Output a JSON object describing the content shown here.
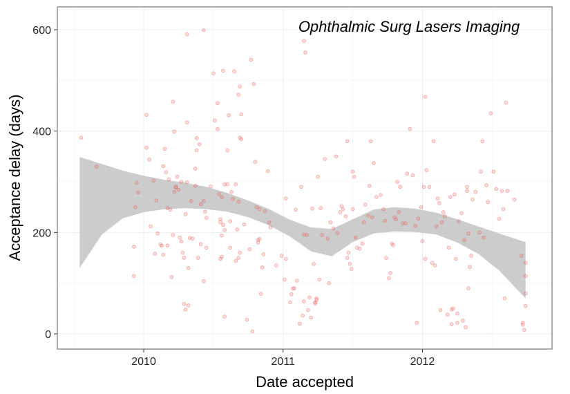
{
  "chart_data": {
    "type": "scatter",
    "title": "",
    "annotation": "Ophthalmic Surg Lasers Imaging",
    "xlabel": "Date accepted",
    "ylabel": "Acceptance delay (days)",
    "x_unit": "year",
    "xlim": [
      2009.38,
      2012.93
    ],
    "ylim": [
      -30,
      645
    ],
    "x_ticks": [
      2010,
      2011,
      2012
    ],
    "x_tick_labels": [
      "2010",
      "2011",
      "2012"
    ],
    "y_ticks": [
      0,
      200,
      400,
      600
    ],
    "y_tick_labels": [
      "0",
      "200",
      "400",
      "600"
    ],
    "grid": true,
    "legend": "none",
    "point_color": "#e8595a",
    "band_color": "#cccccc",
    "smooth": {
      "x": [
        2009.54,
        2009.7,
        2009.85,
        2010.0,
        2010.15,
        2010.3,
        2010.45,
        2010.6,
        2010.75,
        2010.9,
        2011.05,
        2011.2,
        2011.35,
        2011.5,
        2011.65,
        2011.8,
        2011.95,
        2012.1,
        2012.25,
        2012.4,
        2012.55,
        2012.74
      ],
      "upper": [
        349,
        335,
        322,
        312,
        304,
        298,
        290,
        278,
        263,
        246,
        225,
        210,
        207,
        226,
        245,
        250,
        247,
        239,
        226,
        212,
        198,
        181
      ],
      "lower": [
        130,
        196,
        228,
        240,
        246,
        248,
        246,
        241,
        230,
        214,
        192,
        163,
        153,
        181,
        198,
        202,
        201,
        196,
        180,
        158,
        125,
        70
      ]
    },
    "points": [
      [
        2009.55,
        387
      ],
      [
        2009.66,
        330
      ],
      [
        2009.93,
        172
      ],
      [
        2009.93,
        114
      ],
      [
        2009.94,
        250
      ],
      [
        2009.95,
        298
      ],
      [
        2009.96,
        279
      ],
      [
        2010.02,
        367
      ],
      [
        2010.02,
        432
      ],
      [
        2010.04,
        344
      ],
      [
        2010.05,
        212
      ],
      [
        2010.07,
        302
      ],
      [
        2010.08,
        158
      ],
      [
        2010.09,
        263
      ],
      [
        2010.1,
        198
      ],
      [
        2010.12,
        176
      ],
      [
        2010.13,
        174
      ],
      [
        2010.14,
        156
      ],
      [
        2010.14,
        331
      ],
      [
        2010.15,
        365
      ],
      [
        2010.16,
        319
      ],
      [
        2010.17,
        248
      ],
      [
        2010.17,
        174
      ],
      [
        2010.18,
        305
      ],
      [
        2010.19,
        245
      ],
      [
        2010.2,
        112
      ],
      [
        2010.21,
        195
      ],
      [
        2010.21,
        458
      ],
      [
        2010.22,
        280
      ],
      [
        2010.22,
        399
      ],
      [
        2010.23,
        289
      ],
      [
        2010.23,
        290
      ],
      [
        2010.24,
        310
      ],
      [
        2010.25,
        284
      ],
      [
        2010.26,
        190
      ],
      [
        2010.27,
        300
      ],
      [
        2010.27,
        182
      ],
      [
        2010.28,
        160
      ],
      [
        2010.29,
        59
      ],
      [
        2010.29,
        150
      ],
      [
        2010.3,
        48
      ],
      [
        2010.3,
        236
      ],
      [
        2010.31,
        417
      ],
      [
        2010.31,
        299
      ],
      [
        2010.31,
        591
      ],
      [
        2010.32,
        56
      ],
      [
        2010.32,
        130
      ],
      [
        2010.33,
        189
      ],
      [
        2010.34,
        262
      ],
      [
        2010.35,
        188
      ],
      [
        2010.37,
        326
      ],
      [
        2010.37,
        292
      ],
      [
        2010.38,
        362
      ],
      [
        2010.38,
        386
      ],
      [
        2010.39,
        150
      ],
      [
        2010.4,
        374
      ],
      [
        2010.41,
        256
      ],
      [
        2010.41,
        177
      ],
      [
        2010.43,
        104
      ],
      [
        2010.43,
        599
      ],
      [
        2010.43,
        262
      ],
      [
        2010.44,
        241
      ],
      [
        2010.45,
        229
      ],
      [
        2010.45,
        170
      ],
      [
        2010.48,
        291
      ],
      [
        2010.5,
        514
      ],
      [
        2010.51,
        421
      ],
      [
        2010.53,
        404
      ],
      [
        2010.53,
        455
      ],
      [
        2010.54,
        276
      ],
      [
        2010.55,
        220
      ],
      [
        2010.55,
        226
      ],
      [
        2010.55,
        148
      ],
      [
        2010.56,
        194
      ],
      [
        2010.56,
        270
      ],
      [
        2010.56,
        152
      ],
      [
        2010.57,
        215
      ],
      [
        2010.57,
        519
      ],
      [
        2010.58,
        295
      ],
      [
        2010.58,
        34
      ],
      [
        2010.58,
        205
      ],
      [
        2010.6,
        295
      ],
      [
        2010.6,
        362
      ],
      [
        2010.61,
        431
      ],
      [
        2010.62,
        222
      ],
      [
        2010.62,
        170
      ],
      [
        2010.63,
        280
      ],
      [
        2010.64,
        266
      ],
      [
        2010.65,
        518
      ],
      [
        2010.66,
        295
      ],
      [
        2010.66,
        144
      ],
      [
        2010.67,
        206
      ],
      [
        2010.68,
        261
      ],
      [
        2010.68,
        472
      ],
      [
        2010.68,
        150
      ],
      [
        2010.69,
        387
      ],
      [
        2010.69,
        488
      ],
      [
        2010.69,
        160
      ],
      [
        2010.7,
        433
      ],
      [
        2010.7,
        384
      ],
      [
        2010.72,
        216
      ],
      [
        2010.74,
        28
      ],
      [
        2010.76,
        167
      ],
      [
        2010.77,
        541
      ],
      [
        2010.78,
        5
      ],
      [
        2010.79,
        493
      ],
      [
        2010.8,
        339
      ],
      [
        2010.81,
        250
      ],
      [
        2010.82,
        185
      ],
      [
        2010.82,
        180
      ],
      [
        2010.83,
        246
      ],
      [
        2010.83,
        187
      ],
      [
        2010.84,
        79
      ],
      [
        2010.85,
        131
      ],
      [
        2010.86,
        157
      ],
      [
        2010.87,
        242
      ],
      [
        2010.89,
        321
      ],
      [
        2010.9,
        220
      ],
      [
        2010.91,
        210
      ],
      [
        2010.95,
        135
      ],
      [
        2010.99,
        154
      ],
      [
        2011.01,
        107
      ],
      [
        2011.02,
        148
      ],
      [
        2011.02,
        267
      ],
      [
        2011.05,
        62
      ],
      [
        2011.06,
        78
      ],
      [
        2011.07,
        89
      ],
      [
        2011.08,
        90
      ],
      [
        2011.09,
        245
      ],
      [
        2011.1,
        105
      ],
      [
        2011.12,
        20
      ],
      [
        2011.13,
        290
      ],
      [
        2011.14,
        36
      ],
      [
        2011.15,
        64
      ],
      [
        2011.15,
        578
      ],
      [
        2011.15,
        196
      ],
      [
        2011.16,
        555
      ],
      [
        2011.17,
        195
      ],
      [
        2011.18,
        47
      ],
      [
        2011.19,
        72
      ],
      [
        2011.2,
        32
      ],
      [
        2011.21,
        247
      ],
      [
        2011.22,
        138
      ],
      [
        2011.23,
        60
      ],
      [
        2011.23,
        62
      ],
      [
        2011.24,
        70
      ],
      [
        2011.24,
        67
      ],
      [
        2011.25,
        310
      ],
      [
        2011.26,
        107
      ],
      [
        2011.27,
        248
      ],
      [
        2011.28,
        195
      ],
      [
        2011.3,
        345
      ],
      [
        2011.32,
        188
      ],
      [
        2011.33,
        100
      ],
      [
        2011.34,
        220
      ],
      [
        2011.36,
        208
      ],
      [
        2011.38,
        350
      ],
      [
        2011.39,
        199
      ],
      [
        2011.41,
        240
      ],
      [
        2011.42,
        252
      ],
      [
        2011.43,
        246
      ],
      [
        2011.45,
        232
      ],
      [
        2011.46,
        150
      ],
      [
        2011.46,
        380
      ],
      [
        2011.47,
        160
      ],
      [
        2011.48,
        138
      ],
      [
        2011.49,
        128
      ],
      [
        2011.5,
        246
      ],
      [
        2011.5,
        320
      ],
      [
        2011.51,
        310
      ],
      [
        2011.52,
        190
      ],
      [
        2011.53,
        170
      ],
      [
        2011.55,
        168
      ],
      [
        2011.57,
        178
      ],
      [
        2011.58,
        220
      ],
      [
        2011.59,
        255
      ],
      [
        2011.61,
        233
      ],
      [
        2011.62,
        292
      ],
      [
        2011.63,
        380
      ],
      [
        2011.64,
        230
      ],
      [
        2011.65,
        337
      ],
      [
        2011.67,
        270
      ],
      [
        2011.7,
        274
      ],
      [
        2011.72,
        246
      ],
      [
        2011.73,
        223
      ],
      [
        2011.74,
        150
      ],
      [
        2011.76,
        110
      ],
      [
        2011.77,
        120
      ],
      [
        2011.78,
        178
      ],
      [
        2011.79,
        175
      ],
      [
        2011.8,
        230
      ],
      [
        2011.81,
        226
      ],
      [
        2011.82,
        300
      ],
      [
        2011.83,
        240
      ],
      [
        2011.84,
        290
      ],
      [
        2011.86,
        218
      ],
      [
        2011.88,
        218
      ],
      [
        2011.89,
        316
      ],
      [
        2011.91,
        404
      ],
      [
        2011.93,
        313
      ],
      [
        2011.95,
        213
      ],
      [
        2011.96,
        22
      ],
      [
        2011.97,
        227
      ],
      [
        2011.99,
        250
      ],
      [
        2012.0,
        183
      ],
      [
        2012.01,
        290
      ],
      [
        2012.02,
        468
      ],
      [
        2012.02,
        148
      ],
      [
        2012.03,
        323
      ],
      [
        2012.05,
        290
      ],
      [
        2012.07,
        140
      ],
      [
        2012.08,
        380
      ],
      [
        2012.09,
        135
      ],
      [
        2012.1,
        212
      ],
      [
        2012.11,
        267
      ],
      [
        2012.12,
        258
      ],
      [
        2012.13,
        47
      ],
      [
        2012.14,
        220
      ],
      [
        2012.15,
        240
      ],
      [
        2012.16,
        232
      ],
      [
        2012.18,
        38
      ],
      [
        2012.19,
        170
      ],
      [
        2012.2,
        270
      ],
      [
        2012.21,
        48
      ],
      [
        2012.21,
        19
      ],
      [
        2012.22,
        50
      ],
      [
        2012.23,
        275
      ],
      [
        2012.24,
        148
      ],
      [
        2012.25,
        40
      ],
      [
        2012.25,
        22
      ],
      [
        2012.26,
        222
      ],
      [
        2012.28,
        238
      ],
      [
        2012.29,
        26
      ],
      [
        2012.3,
        185
      ],
      [
        2012.31,
        13
      ],
      [
        2012.32,
        290
      ],
      [
        2012.32,
        282
      ],
      [
        2012.33,
        198
      ],
      [
        2012.33,
        90
      ],
      [
        2012.34,
        132
      ],
      [
        2012.35,
        154
      ],
      [
        2012.36,
        265
      ],
      [
        2012.38,
        280
      ],
      [
        2012.41,
        200
      ],
      [
        2012.42,
        320
      ],
      [
        2012.43,
        380
      ],
      [
        2012.44,
        190
      ],
      [
        2012.46,
        293
      ],
      [
        2012.47,
        260
      ],
      [
        2012.49,
        435
      ],
      [
        2012.51,
        320
      ],
      [
        2012.53,
        286
      ],
      [
        2012.55,
        227
      ],
      [
        2012.57,
        282
      ],
      [
        2012.58,
        246
      ],
      [
        2012.59,
        70
      ],
      [
        2012.6,
        456
      ],
      [
        2012.61,
        282
      ],
      [
        2012.66,
        265
      ],
      [
        2012.71,
        154
      ],
      [
        2012.72,
        22
      ],
      [
        2012.72,
        18
      ],
      [
        2012.73,
        8
      ],
      [
        2012.74,
        140
      ],
      [
        2012.74,
        114
      ],
      [
        2012.74,
        80
      ],
      [
        2012.74,
        55
      ]
    ]
  }
}
